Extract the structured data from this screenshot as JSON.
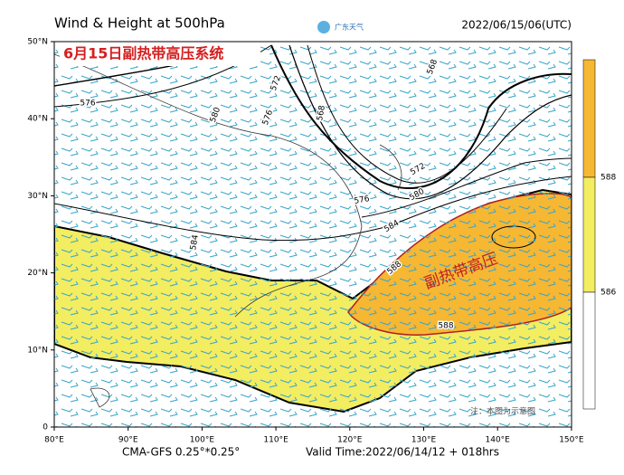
{
  "header": {
    "title": "Wind & Height at 500hPa",
    "logo": "广东天气",
    "time": "2022/06/15/06(UTC)"
  },
  "map": {
    "headline": "6月15日副热带高压系统",
    "region_label": "副热带高压",
    "note": "注：本图为示意图",
    "lat_labels": [
      "50°N",
      "40°N",
      "30°N",
      "20°N",
      "10°N",
      "0"
    ],
    "lon_labels": [
      "80°E",
      "90°E",
      "100°E",
      "110°E",
      "120°E",
      "130°E",
      "140°E",
      "150°E"
    ],
    "contour_labels": [
      "576",
      "572",
      "580",
      "576",
      "568",
      "568",
      "572",
      "576",
      "580",
      "584",
      "584",
      "588",
      "588"
    ]
  },
  "colorbar": {
    "labels": [
      "588",
      "586"
    ]
  },
  "footer": {
    "model": "CMA-GFS  0.25°*0.25°",
    "valid": "Valid Time:2022/06/14/12 + 018hrs"
  }
}
